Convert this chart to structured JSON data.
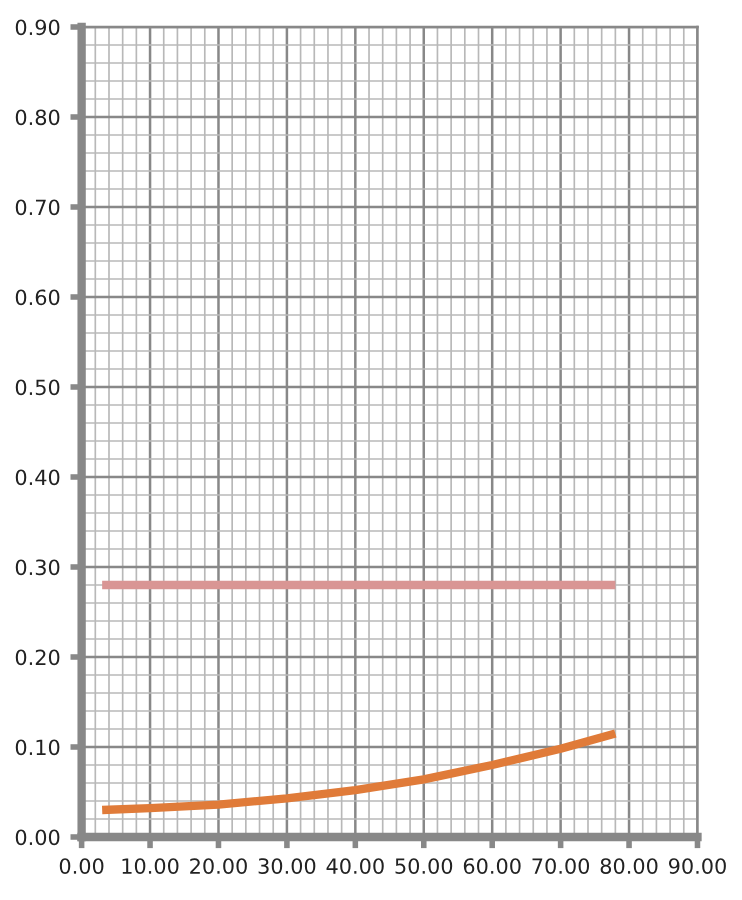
{
  "chart_data": {
    "type": "line",
    "x": [
      3,
      10,
      20,
      30,
      40,
      50,
      60,
      70,
      78
    ],
    "series": [
      {
        "color": "#e07b39",
        "values": [
          0.03,
          0.032,
          0.036,
          0.043,
          0.052,
          0.064,
          0.08,
          0.098,
          0.115
        ]
      },
      {
        "color": "#d99594",
        "x": [
          3,
          78
        ],
        "values": [
          0.28,
          0.28
        ]
      }
    ],
    "xlim": [
      0,
      90
    ],
    "ylim": [
      0,
      0.9
    ],
    "xticks": [
      {
        "value": 0,
        "label": "0.00"
      },
      {
        "value": 10,
        "label": "10.00"
      },
      {
        "value": 20,
        "label": "20.00"
      },
      {
        "value": 30,
        "label": "30.00"
      },
      {
        "value": 40,
        "label": "40.00"
      },
      {
        "value": 50,
        "label": "50.00"
      },
      {
        "value": 60,
        "label": "60.00"
      },
      {
        "value": 70,
        "label": "70.00"
      },
      {
        "value": 80,
        "label": "80.00"
      },
      {
        "value": 90,
        "label": "90.00"
      }
    ],
    "yticks": [
      {
        "value": 0,
        "label": "0.00"
      },
      {
        "value": 0.1,
        "label": "0.10"
      },
      {
        "value": 0.2,
        "label": "0.20"
      },
      {
        "value": 0.3,
        "label": "0.30"
      },
      {
        "value": 0.4,
        "label": "0.40"
      },
      {
        "value": 0.5,
        "label": "0.50"
      },
      {
        "value": 0.6,
        "label": "0.60"
      },
      {
        "value": 0.7,
        "label": "0.70"
      },
      {
        "value": 0.8,
        "label": "0.80"
      },
      {
        "value": 0.9,
        "label": "0.90"
      }
    ],
    "grid": true,
    "marker": "none",
    "line_style": "solid"
  }
}
